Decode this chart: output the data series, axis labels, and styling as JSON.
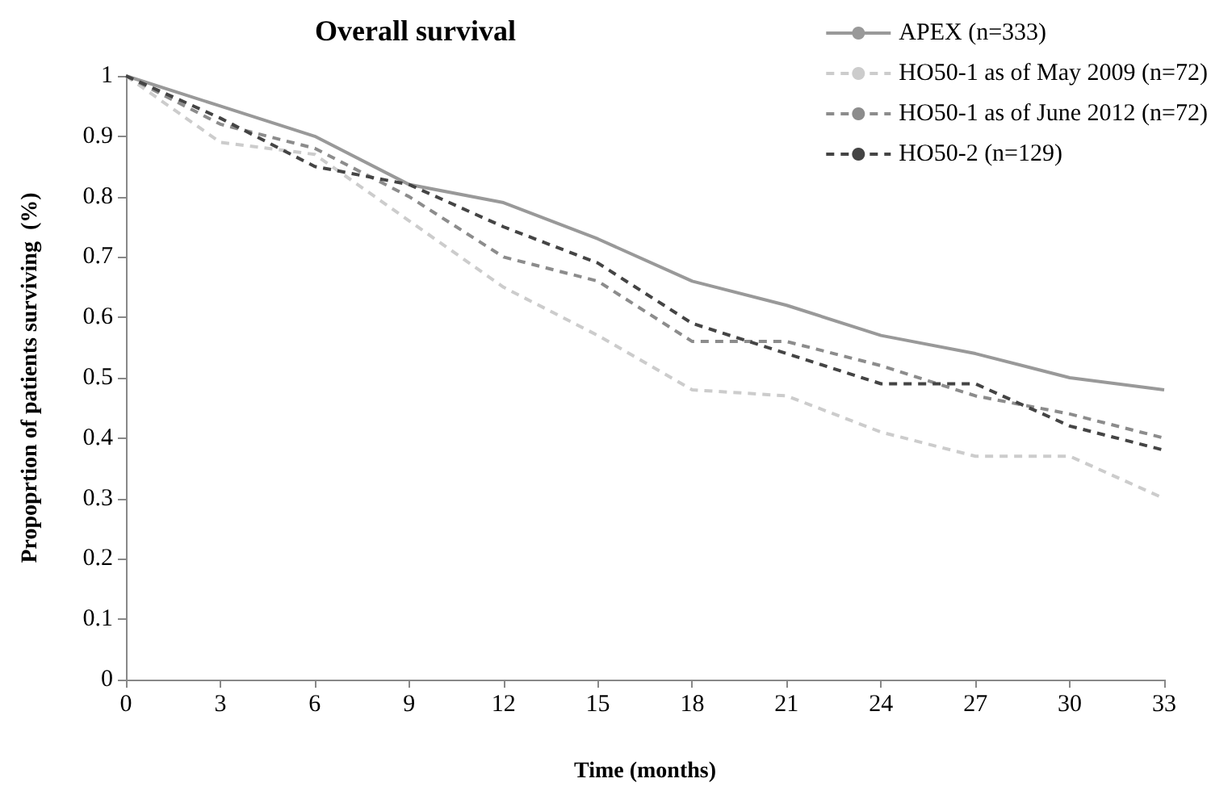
{
  "chart_data": {
    "type": "line",
    "title": "Overall survival",
    "xlabel": "Time (months)",
    "ylabel": "Propoprtion of patients surviving  (%)",
    "x": [
      0,
      3,
      6,
      9,
      12,
      15,
      18,
      21,
      24,
      27,
      30,
      33
    ],
    "xlim": [
      0,
      33
    ],
    "xticks": [
      0,
      3,
      6,
      9,
      12,
      15,
      18,
      21,
      24,
      27,
      30,
      33
    ],
    "ylim": [
      0,
      1
    ],
    "yticks": [
      0,
      0.1,
      0.2,
      0.3,
      0.4,
      0.5,
      0.6,
      0.7,
      0.8,
      0.9,
      1
    ],
    "grid": false,
    "legend": "top right",
    "marker": "none",
    "series": [
      {
        "name": "APEX (n=333)",
        "color": "#999999",
        "line_style": "solid",
        "values": [
          1,
          0.95,
          0.9,
          0.82,
          0.79,
          0.73,
          0.66,
          0.62,
          0.57,
          0.54,
          0.5,
          0.48
        ]
      },
      {
        "name": "HO50-1 as of May 2009 (n=72)",
        "color": "#cccccc",
        "line_style": "dashed",
        "values": [
          1,
          0.89,
          0.87,
          0.76,
          0.65,
          0.57,
          0.48,
          0.47,
          0.41,
          0.37,
          0.37,
          0.3
        ]
      },
      {
        "name": "HO50-1 as of June 2012 (n=72)",
        "color": "#8c8c8c",
        "line_style": "dashed",
        "values": [
          1,
          0.92,
          0.88,
          0.8,
          0.7,
          0.66,
          0.56,
          0.56,
          0.52,
          0.47,
          0.44,
          0.4
        ]
      },
      {
        "name": "HO50-2 (n=129)",
        "color": "#444444",
        "line_style": "dashed",
        "values": [
          1,
          0.93,
          0.85,
          0.82,
          0.75,
          0.69,
          0.59,
          0.54,
          0.49,
          0.49,
          0.42,
          0.38
        ]
      }
    ]
  }
}
